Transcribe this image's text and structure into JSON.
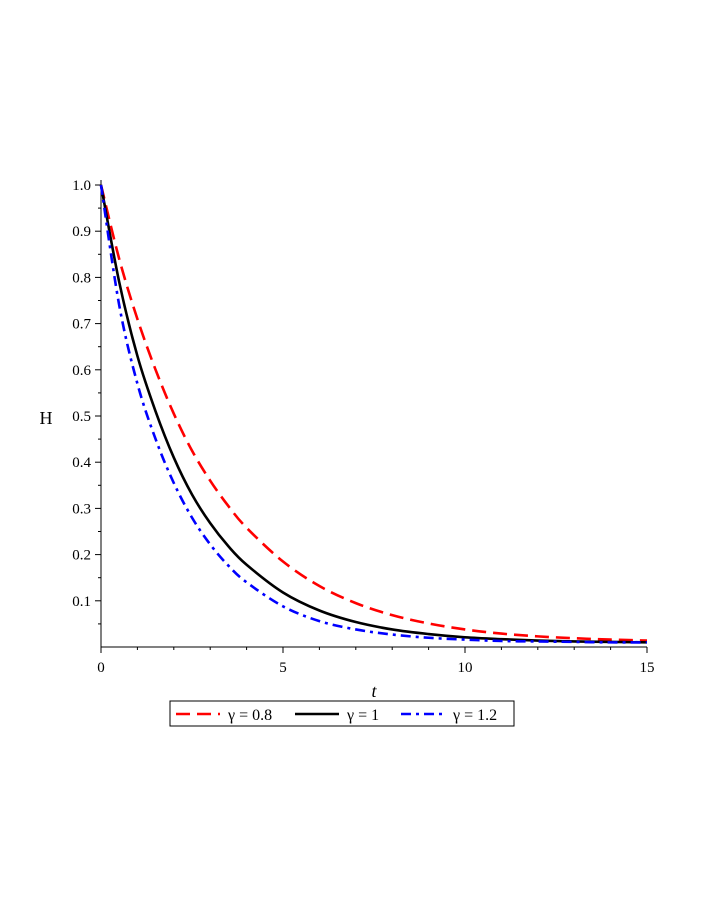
{
  "chart_data": {
    "type": "line",
    "xlabel": "t",
    "ylabel": "H",
    "xlim": [
      0,
      15
    ],
    "ylim": [
      0.0,
      1.0
    ],
    "x_ticks": [
      0,
      5,
      10,
      15
    ],
    "y_ticks": [
      0.1,
      0.2,
      0.3,
      0.4,
      0.5,
      0.6,
      0.7,
      0.8,
      0.9,
      1.0
    ],
    "y_tick_labels": [
      "0.1",
      "0.2",
      "0.3",
      "0.4",
      "0.5",
      "0.6",
      "0.7",
      "0.8",
      "0.9",
      "1.0"
    ],
    "grid": false,
    "legend_position": "bottom",
    "series": [
      {
        "name": "γ = 0.8",
        "color": "#ff0000",
        "style": "dash",
        "x": [
          0,
          0.5,
          1,
          1.5,
          2,
          2.5,
          3,
          3.5,
          4,
          5,
          6,
          7,
          8,
          9,
          10,
          11,
          12,
          13,
          14,
          15
        ],
        "y": [
          1.0,
          0.84,
          0.71,
          0.6,
          0.505,
          0.425,
          0.36,
          0.305,
          0.258,
          0.185,
          0.132,
          0.095,
          0.069,
          0.051,
          0.038,
          0.029,
          0.023,
          0.019,
          0.016,
          0.014
        ]
      },
      {
        "name": "γ = 1",
        "color": "#000000",
        "style": "solid",
        "x": [
          0,
          0.5,
          1,
          1.5,
          2,
          2.5,
          3,
          3.5,
          4,
          5,
          6,
          7,
          8,
          9,
          10,
          11,
          12,
          13,
          14,
          15
        ],
        "y": [
          1.0,
          0.79,
          0.63,
          0.51,
          0.41,
          0.33,
          0.268,
          0.218,
          0.178,
          0.118,
          0.079,
          0.054,
          0.038,
          0.028,
          0.021,
          0.017,
          0.014,
          0.012,
          0.011,
          0.01
        ]
      },
      {
        "name": "γ = 1.2",
        "color": "#0000ff",
        "style": "dashdot",
        "x": [
          0,
          0.5,
          1,
          1.5,
          2,
          2.5,
          3,
          3.5,
          4,
          5,
          6,
          7,
          8,
          9,
          10,
          11,
          12,
          13,
          14,
          15
        ],
        "y": [
          1.0,
          0.74,
          0.57,
          0.45,
          0.355,
          0.28,
          0.222,
          0.176,
          0.14,
          0.088,
          0.056,
          0.038,
          0.027,
          0.02,
          0.016,
          0.013,
          0.012,
          0.011,
          0.01,
          0.01
        ]
      }
    ]
  }
}
